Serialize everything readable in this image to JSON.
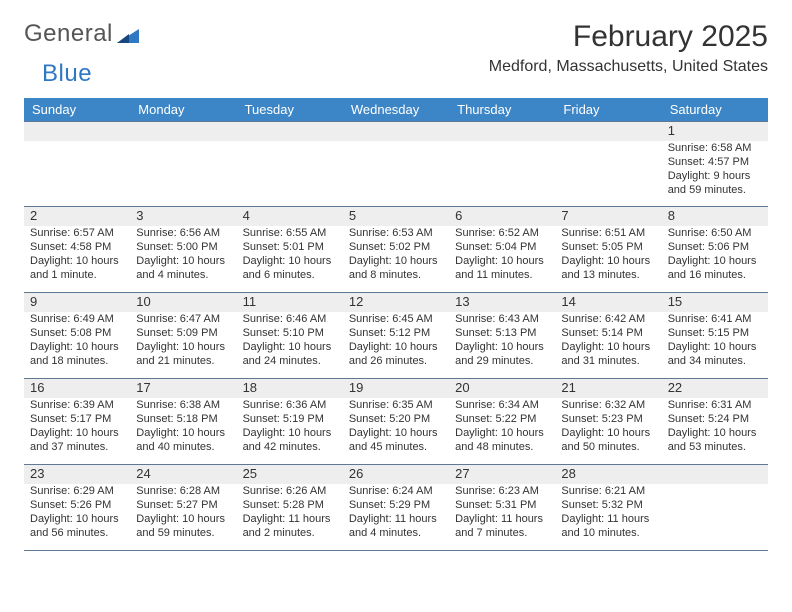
{
  "colors": {
    "header_band": "#3c85c6",
    "header_text": "#ffffff",
    "daynum_band": "#eeeeee",
    "rule": "#5f7894",
    "logo_gray": "#555555",
    "logo_blue": "#2f78c4",
    "text": "#333333",
    "background": "#ffffff"
  },
  "typography": {
    "month_title_size": 30,
    "location_size": 16,
    "weekday_size": 13,
    "daynum_size": 13,
    "body_size": 11
  },
  "logo": {
    "word1": "General",
    "word2": "Blue"
  },
  "title": "February 2025",
  "location": "Medford, Massachusetts, United States",
  "weekdays": [
    "Sunday",
    "Monday",
    "Tuesday",
    "Wednesday",
    "Thursday",
    "Friday",
    "Saturday"
  ],
  "weeks": [
    [
      null,
      null,
      null,
      null,
      null,
      null,
      {
        "n": "1",
        "sunrise": "6:58 AM",
        "sunset": "4:57 PM",
        "daylight": "9 hours and 59 minutes."
      }
    ],
    [
      {
        "n": "2",
        "sunrise": "6:57 AM",
        "sunset": "4:58 PM",
        "daylight": "10 hours and 1 minute."
      },
      {
        "n": "3",
        "sunrise": "6:56 AM",
        "sunset": "5:00 PM",
        "daylight": "10 hours and 4 minutes."
      },
      {
        "n": "4",
        "sunrise": "6:55 AM",
        "sunset": "5:01 PM",
        "daylight": "10 hours and 6 minutes."
      },
      {
        "n": "5",
        "sunrise": "6:53 AM",
        "sunset": "5:02 PM",
        "daylight": "10 hours and 8 minutes."
      },
      {
        "n": "6",
        "sunrise": "6:52 AM",
        "sunset": "5:04 PM",
        "daylight": "10 hours and 11 minutes."
      },
      {
        "n": "7",
        "sunrise": "6:51 AM",
        "sunset": "5:05 PM",
        "daylight": "10 hours and 13 minutes."
      },
      {
        "n": "8",
        "sunrise": "6:50 AM",
        "sunset": "5:06 PM",
        "daylight": "10 hours and 16 minutes."
      }
    ],
    [
      {
        "n": "9",
        "sunrise": "6:49 AM",
        "sunset": "5:08 PM",
        "daylight": "10 hours and 18 minutes."
      },
      {
        "n": "10",
        "sunrise": "6:47 AM",
        "sunset": "5:09 PM",
        "daylight": "10 hours and 21 minutes."
      },
      {
        "n": "11",
        "sunrise": "6:46 AM",
        "sunset": "5:10 PM",
        "daylight": "10 hours and 24 minutes."
      },
      {
        "n": "12",
        "sunrise": "6:45 AM",
        "sunset": "5:12 PM",
        "daylight": "10 hours and 26 minutes."
      },
      {
        "n": "13",
        "sunrise": "6:43 AM",
        "sunset": "5:13 PM",
        "daylight": "10 hours and 29 minutes."
      },
      {
        "n": "14",
        "sunrise": "6:42 AM",
        "sunset": "5:14 PM",
        "daylight": "10 hours and 31 minutes."
      },
      {
        "n": "15",
        "sunrise": "6:41 AM",
        "sunset": "5:15 PM",
        "daylight": "10 hours and 34 minutes."
      }
    ],
    [
      {
        "n": "16",
        "sunrise": "6:39 AM",
        "sunset": "5:17 PM",
        "daylight": "10 hours and 37 minutes."
      },
      {
        "n": "17",
        "sunrise": "6:38 AM",
        "sunset": "5:18 PM",
        "daylight": "10 hours and 40 minutes."
      },
      {
        "n": "18",
        "sunrise": "6:36 AM",
        "sunset": "5:19 PM",
        "daylight": "10 hours and 42 minutes."
      },
      {
        "n": "19",
        "sunrise": "6:35 AM",
        "sunset": "5:20 PM",
        "daylight": "10 hours and 45 minutes."
      },
      {
        "n": "20",
        "sunrise": "6:34 AM",
        "sunset": "5:22 PM",
        "daylight": "10 hours and 48 minutes."
      },
      {
        "n": "21",
        "sunrise": "6:32 AM",
        "sunset": "5:23 PM",
        "daylight": "10 hours and 50 minutes."
      },
      {
        "n": "22",
        "sunrise": "6:31 AM",
        "sunset": "5:24 PM",
        "daylight": "10 hours and 53 minutes."
      }
    ],
    [
      {
        "n": "23",
        "sunrise": "6:29 AM",
        "sunset": "5:26 PM",
        "daylight": "10 hours and 56 minutes."
      },
      {
        "n": "24",
        "sunrise": "6:28 AM",
        "sunset": "5:27 PM",
        "daylight": "10 hours and 59 minutes."
      },
      {
        "n": "25",
        "sunrise": "6:26 AM",
        "sunset": "5:28 PM",
        "daylight": "11 hours and 2 minutes."
      },
      {
        "n": "26",
        "sunrise": "6:24 AM",
        "sunset": "5:29 PM",
        "daylight": "11 hours and 4 minutes."
      },
      {
        "n": "27",
        "sunrise": "6:23 AM",
        "sunset": "5:31 PM",
        "daylight": "11 hours and 7 minutes."
      },
      {
        "n": "28",
        "sunrise": "6:21 AM",
        "sunset": "5:32 PM",
        "daylight": "11 hours and 10 minutes."
      },
      null
    ]
  ],
  "labels": {
    "sunrise": "Sunrise:",
    "sunset": "Sunset:",
    "daylight": "Daylight:"
  }
}
